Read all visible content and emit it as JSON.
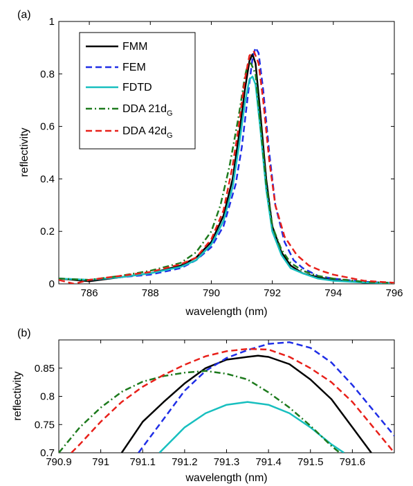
{
  "chart_data": [
    {
      "type": "line",
      "panel_label": "(a)",
      "xlabel": "wavelength (nm)",
      "ylabel": "reflectivity",
      "xlim": [
        785,
        796
      ],
      "ylim": [
        0,
        1
      ],
      "xticks": [
        786,
        788,
        790,
        792,
        794,
        796
      ],
      "yticks": [
        0,
        0.2,
        0.4,
        0.6,
        0.8,
        1
      ],
      "xtick_labels": [
        "786",
        "788",
        "790",
        "792",
        "794",
        "796"
      ],
      "ytick_labels": [
        "0",
        "0.2",
        "0.4",
        "0.6",
        "0.8",
        "1"
      ],
      "grid": false,
      "legend_position": "top-left",
      "series": [
        {
          "name": "FMM",
          "color": "#000000",
          "style": "solid",
          "x": [
            785,
            786,
            787,
            788,
            789,
            789.5,
            790,
            790.4,
            790.7,
            790.9,
            791.1,
            791.25,
            791.35,
            791.45,
            791.6,
            791.8,
            792,
            792.3,
            792.6,
            793,
            793.5,
            794,
            794.5,
            795,
            796
          ],
          "y": [
            0.02,
            0.01,
            0.025,
            0.04,
            0.07,
            0.1,
            0.16,
            0.26,
            0.4,
            0.56,
            0.74,
            0.85,
            0.875,
            0.84,
            0.66,
            0.4,
            0.22,
            0.12,
            0.07,
            0.04,
            0.025,
            0.015,
            0.01,
            0.005,
            0.002
          ]
        },
        {
          "name": "FEM",
          "color": "#1f2ee6",
          "style": "dashed",
          "x": [
            785,
            786,
            787,
            788,
            789,
            789.5,
            790,
            790.4,
            790.8,
            791,
            791.2,
            791.35,
            791.45,
            791.55,
            791.7,
            791.9,
            792.1,
            792.4,
            792.7,
            793,
            793.5,
            794,
            795,
            796
          ],
          "y": [
            0.02,
            0.015,
            0.025,
            0.035,
            0.06,
            0.09,
            0.14,
            0.22,
            0.38,
            0.52,
            0.72,
            0.86,
            0.9,
            0.88,
            0.74,
            0.5,
            0.3,
            0.16,
            0.09,
            0.06,
            0.03,
            0.02,
            0.008,
            0.003
          ]
        },
        {
          "name": "FDTD",
          "color": "#18bfbf",
          "style": "solid",
          "x": [
            785,
            786,
            787,
            788,
            789,
            789.5,
            790,
            790.4,
            790.7,
            790.9,
            791.1,
            791.25,
            791.35,
            791.45,
            791.6,
            791.8,
            792,
            792.3,
            792.6,
            793,
            793.5,
            794,
            795,
            796
          ],
          "y": [
            0.02,
            0.015,
            0.025,
            0.04,
            0.065,
            0.09,
            0.15,
            0.24,
            0.37,
            0.52,
            0.69,
            0.78,
            0.79,
            0.76,
            0.6,
            0.36,
            0.2,
            0.11,
            0.06,
            0.04,
            0.02,
            0.012,
            0.005,
            0.002
          ]
        },
        {
          "name": "DDA 21d",
          "sub": "G",
          "color": "#1d7a1d",
          "style": "dashdot",
          "x": [
            785,
            786,
            787,
            788,
            789,
            789.5,
            790,
            790.3,
            790.6,
            790.9,
            791.1,
            791.2,
            791.3,
            791.45,
            791.6,
            791.8,
            792,
            792.3,
            792.6,
            793,
            793.5,
            794,
            795,
            796
          ],
          "y": [
            0.02,
            0.015,
            0.03,
            0.05,
            0.08,
            0.12,
            0.2,
            0.3,
            0.45,
            0.64,
            0.79,
            0.84,
            0.84,
            0.8,
            0.62,
            0.38,
            0.22,
            0.13,
            0.08,
            0.05,
            0.03,
            0.02,
            0.008,
            0.003
          ]
        },
        {
          "name": "DDA 42d",
          "sub": "G",
          "color": "#e8201a",
          "style": "dashed",
          "x": [
            785,
            785.5,
            786,
            787,
            788,
            789,
            789.5,
            790,
            790.4,
            790.7,
            790.9,
            791.1,
            791.25,
            791.4,
            791.55,
            791.7,
            791.9,
            792.1,
            792.4,
            792.8,
            793.2,
            793.6,
            794,
            795,
            796
          ],
          "y": [
            0.015,
            0.0,
            0.015,
            0.03,
            0.045,
            0.075,
            0.1,
            0.17,
            0.28,
            0.45,
            0.6,
            0.78,
            0.87,
            0.885,
            0.84,
            0.7,
            0.47,
            0.3,
            0.18,
            0.11,
            0.07,
            0.05,
            0.035,
            0.012,
            0.004
          ]
        }
      ]
    },
    {
      "type": "line",
      "panel_label": "(b)",
      "xlabel": "wavelength (nm)",
      "ylabel": "reflectivity",
      "xlim": [
        790.9,
        791.7
      ],
      "ylim": [
        0.7,
        0.9
      ],
      "xticks": [
        790.9,
        791,
        791.1,
        791.2,
        791.3,
        791.4,
        791.5,
        791.6
      ],
      "yticks": [
        0.7,
        0.75,
        0.8,
        0.85
      ],
      "xtick_labels": [
        "790.9",
        "791",
        "791.1",
        "791.2",
        "791.3",
        "791.4",
        "791.5",
        "791.6"
      ],
      "ytick_labels": [
        "0.7",
        "0.75",
        "0.8",
        "0.85"
      ],
      "grid": false,
      "series": [
        {
          "name": "FMM",
          "color": "#000000",
          "style": "solid",
          "x": [
            791.05,
            791.1,
            791.15,
            791.2,
            791.25,
            791.3,
            791.35,
            791.375,
            791.4,
            791.45,
            791.5,
            791.55,
            791.6,
            791.645
          ],
          "y": [
            0.7,
            0.755,
            0.79,
            0.823,
            0.85,
            0.865,
            0.87,
            0.872,
            0.87,
            0.857,
            0.83,
            0.795,
            0.745,
            0.7
          ]
        },
        {
          "name": "FEM",
          "color": "#1f2ee6",
          "style": "dashed",
          "x": [
            791.09,
            791.15,
            791.2,
            791.25,
            791.3,
            791.35,
            791.4,
            791.45,
            791.5,
            791.55,
            791.6,
            791.65,
            791.7
          ],
          "y": [
            0.7,
            0.76,
            0.81,
            0.845,
            0.868,
            0.882,
            0.893,
            0.896,
            0.886,
            0.86,
            0.82,
            0.775,
            0.73
          ]
        },
        {
          "name": "FDTD",
          "color": "#18bfbf",
          "style": "solid",
          "x": [
            791.14,
            791.2,
            791.25,
            791.3,
            791.35,
            791.4,
            791.45,
            791.5,
            791.55,
            791.58
          ],
          "y": [
            0.7,
            0.745,
            0.77,
            0.785,
            0.79,
            0.785,
            0.77,
            0.745,
            0.715,
            0.7
          ]
        },
        {
          "name": "DDA 21d",
          "sub": "G",
          "color": "#1d7a1d",
          "style": "dashdot",
          "x": [
            790.9,
            790.95,
            791,
            791.05,
            791.1,
            791.15,
            791.2,
            791.25,
            791.3,
            791.35,
            791.4,
            791.45,
            791.5,
            791.55,
            791.57
          ],
          "y": [
            0.7,
            0.745,
            0.78,
            0.808,
            0.826,
            0.836,
            0.842,
            0.845,
            0.84,
            0.83,
            0.807,
            0.78,
            0.748,
            0.712,
            0.7
          ]
        },
        {
          "name": "DDA 42d",
          "sub": "G",
          "color": "#e8201a",
          "style": "dashed",
          "x": [
            790.93,
            790.95,
            791,
            791.05,
            791.1,
            791.15,
            791.2,
            791.25,
            791.3,
            791.35,
            791.4,
            791.45,
            791.5,
            791.55,
            791.6,
            791.65,
            791.7
          ],
          "y": [
            0.7,
            0.715,
            0.755,
            0.79,
            0.817,
            0.838,
            0.856,
            0.871,
            0.88,
            0.884,
            0.883,
            0.87,
            0.85,
            0.825,
            0.79,
            0.745,
            0.7
          ]
        }
      ]
    }
  ]
}
